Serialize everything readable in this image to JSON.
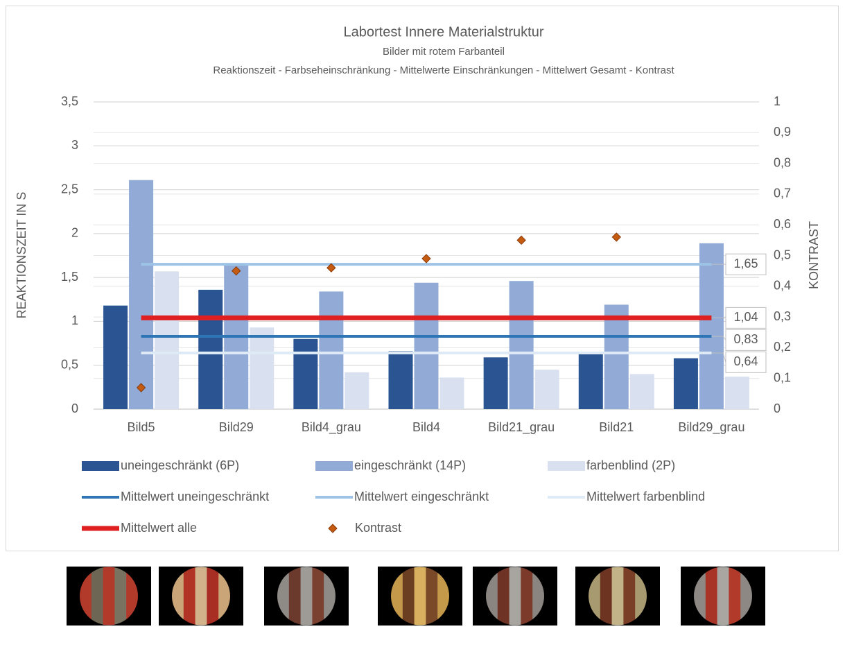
{
  "chart_data": {
    "type": "combo",
    "title": "Labortest Innere Materialstruktur",
    "subtitle": "Bilder mit rotem Farbanteil",
    "subtitle2": "Reaktionszeit - Farbseheinschränkung - Mittelwerte Einschränkungen - Mittelwert Gesamt - Kontrast",
    "y_label": "REAKTIONSZEIT IN S",
    "y2_label": "KONTRAST",
    "categories": [
      "Bild5",
      "Bild29",
      "Bild4_grau",
      "Bild4",
      "Bild21_grau",
      "Bild21",
      "Bild29_grau"
    ],
    "ylim": [
      0,
      3.5
    ],
    "yticks": [
      0,
      {
        "value": 0.5,
        "label": "0,5"
      },
      1,
      {
        "value": 1.5,
        "label": "1,5"
      },
      2,
      {
        "value": 2.5,
        "label": "2,5"
      },
      3,
      {
        "value": 3.5,
        "label": "3,5"
      }
    ],
    "y2lim": [
      0,
      1
    ],
    "y2ticks": [
      0,
      {
        "value": 0.1,
        "label": "0,1"
      },
      {
        "value": 0.2,
        "label": "0,2"
      },
      {
        "value": 0.3,
        "label": "0,3"
      },
      {
        "value": 0.4,
        "label": "0,4"
      },
      {
        "value": 0.5,
        "label": "0,5"
      },
      {
        "value": 0.6,
        "label": "0,6"
      },
      {
        "value": 0.7,
        "label": "0,7"
      },
      {
        "value": 0.8,
        "label": "0,8"
      },
      {
        "value": 0.9,
        "label": "0,9"
      },
      1
    ],
    "grid": true,
    "series": [
      {
        "name": "uneingeschränkt (6P)",
        "type": "bar",
        "color": "#2a5592",
        "values": [
          1.18,
          1.36,
          0.8,
          0.66,
          0.59,
          0.63,
          0.58
        ]
      },
      {
        "name": "eingeschränkt (14P)",
        "type": "bar",
        "color": "#91abd6",
        "values": [
          2.61,
          1.66,
          1.34,
          1.44,
          1.46,
          1.19,
          1.89
        ]
      },
      {
        "name": "farbenblind (2P)",
        "type": "bar",
        "color": "#d9e1f0",
        "values": [
          1.57,
          0.93,
          0.42,
          0.36,
          0.45,
          0.4,
          0.37
        ]
      },
      {
        "name": "Mittelwert uneingeschränkt",
        "type": "line",
        "color": "#2e75b6",
        "width": 4,
        "values": [
          0.83,
          0.83,
          0.83,
          0.83,
          0.83,
          0.83,
          0.83
        ],
        "value_labels": [
          null,
          null,
          null,
          null,
          null,
          null,
          "0,83"
        ]
      },
      {
        "name": "Mittelwert eingeschränkt",
        "type": "line",
        "color": "#9dc3e6",
        "width": 4,
        "values": [
          1.65,
          1.65,
          1.65,
          1.65,
          1.65,
          1.65,
          1.65
        ],
        "value_labels": [
          null,
          null,
          null,
          null,
          null,
          null,
          "1,65"
        ]
      },
      {
        "name": "Mittelwert farbenblind",
        "type": "line",
        "color": "#deebf7",
        "width": 4,
        "values": [
          0.64,
          0.64,
          0.64,
          0.64,
          0.64,
          0.64,
          0.64
        ],
        "value_labels": [
          null,
          null,
          null,
          null,
          null,
          null,
          "0,64"
        ]
      },
      {
        "name": "Mittelwert alle",
        "type": "line",
        "color": "#e02020",
        "width": 7,
        "values": [
          1.04,
          1.04,
          1.04,
          1.04,
          1.04,
          1.04,
          1.04
        ],
        "value_labels": [
          null,
          null,
          null,
          null,
          null,
          null,
          "1,04"
        ]
      },
      {
        "name": "Kontrast",
        "type": "scatter",
        "axis": "y2",
        "color": "#c55a11",
        "values": [
          0.07,
          0.45,
          0.46,
          0.49,
          0.55,
          0.56,
          null
        ]
      }
    ]
  }
}
